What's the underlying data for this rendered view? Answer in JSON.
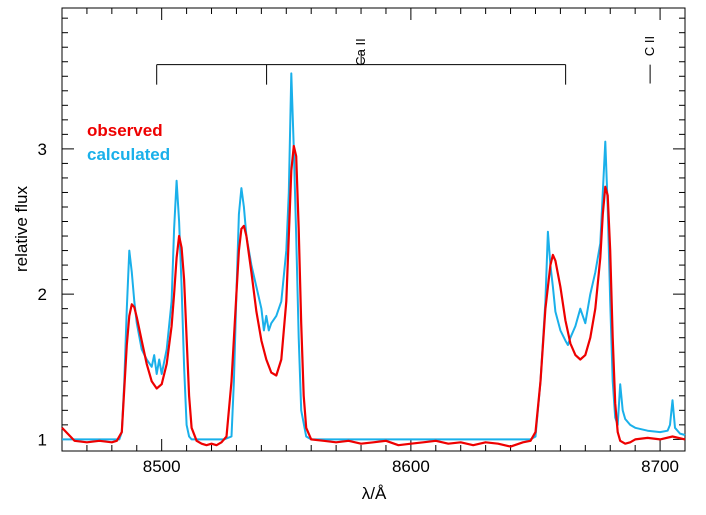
{
  "chart_data": {
    "type": "line",
    "title": "",
    "xlabel": "λ/Å",
    "ylabel": "relative flux",
    "xlim": [
      8460,
      8710
    ],
    "ylim": [
      0.92,
      3.97
    ],
    "x_ticks": [
      8500,
      8600,
      8700
    ],
    "x_tick_labels": [
      "8500",
      "8600",
      "8700"
    ],
    "y_ticks": [
      1,
      2,
      3
    ],
    "y_tick_labels": [
      "1",
      "2",
      "3"
    ],
    "legend": {
      "placement": "top-left",
      "entries": [
        {
          "label": "observed",
          "color": "#ee0000"
        },
        {
          "label": "calculated",
          "color": "#1ab0ea"
        }
      ]
    },
    "annotations": {
      "ca_label": "Ca II",
      "ca_lines": [
        8498.0,
        8542.1,
        8662.1
      ],
      "ca_bar_flux": 3.58,
      "ca_tick_top_flux": 3.68,
      "c_label": "C II",
      "c_line": 8696.0,
      "c_tick_range": [
        3.45,
        3.58
      ]
    },
    "series": [
      {
        "name": "observed",
        "color": "#ee0000",
        "x": [
          8460,
          8465,
          8470,
          8475,
          8480,
          8482,
          8484,
          8485,
          8486,
          8487,
          8488,
          8489,
          8490,
          8492,
          8494,
          8496,
          8498,
          8500,
          8502,
          8504,
          8505,
          8506,
          8507,
          8508,
          8509,
          8510,
          8511,
          8512,
          8514,
          8516,
          8518,
          8520,
          8522,
          8524,
          8526,
          8528,
          8530,
          8531,
          8532,
          8533,
          8534,
          8536,
          8538,
          8540,
          8542,
          8544,
          8546,
          8548,
          8550,
          8551,
          8552,
          8553,
          8554,
          8555,
          8556,
          8557,
          8558,
          8560,
          8565,
          8570,
          8575,
          8580,
          8585,
          8590,
          8595,
          8600,
          8605,
          8610,
          8615,
          8620,
          8625,
          8630,
          8635,
          8640,
          8645,
          8648,
          8650,
          8652,
          8654,
          8656,
          8657,
          8658,
          8660,
          8662,
          8664,
          8666,
          8668,
          8670,
          8672,
          8674,
          8676,
          8677,
          8678,
          8679,
          8680,
          8681,
          8682,
          8683,
          8684,
          8686,
          8688,
          8690,
          8695,
          8700,
          8705,
          8710
        ],
        "y": [
          1.08,
          0.99,
          0.98,
          0.99,
          0.98,
          0.99,
          1.05,
          1.35,
          1.65,
          1.85,
          1.93,
          1.91,
          1.84,
          1.68,
          1.52,
          1.4,
          1.35,
          1.38,
          1.52,
          1.78,
          2.0,
          2.25,
          2.4,
          2.32,
          2.1,
          1.7,
          1.3,
          1.08,
          0.99,
          0.97,
          0.96,
          0.97,
          0.96,
          0.98,
          1.02,
          1.4,
          2.0,
          2.3,
          2.45,
          2.47,
          2.4,
          2.15,
          1.88,
          1.68,
          1.55,
          1.46,
          1.44,
          1.55,
          1.95,
          2.4,
          2.85,
          3.02,
          2.95,
          2.45,
          1.8,
          1.3,
          1.08,
          1.0,
          0.99,
          0.98,
          0.99,
          0.97,
          0.98,
          0.99,
          0.96,
          0.97,
          0.98,
          0.99,
          0.97,
          0.98,
          0.96,
          0.98,
          0.97,
          0.95,
          0.98,
          0.99,
          1.05,
          1.4,
          1.9,
          2.2,
          2.27,
          2.23,
          2.05,
          1.82,
          1.66,
          1.58,
          1.55,
          1.58,
          1.7,
          1.9,
          2.25,
          2.55,
          2.74,
          2.68,
          2.3,
          1.7,
          1.25,
          1.05,
          0.99,
          0.97,
          0.98,
          1.0,
          1.01,
          1.0,
          1.02,
          1.0
        ]
      },
      {
        "name": "calculated",
        "color": "#1ab0ea",
        "x": [
          8460,
          8470,
          8480,
          8483,
          8484,
          8485,
          8486,
          8487,
          8488,
          8489,
          8490,
          8492,
          8494,
          8496,
          8497,
          8498,
          8499,
          8500,
          8502,
          8504,
          8505,
          8506,
          8507,
          8508,
          8509,
          8510,
          8511,
          8512,
          8514,
          8520,
          8525,
          8528,
          8529,
          8530,
          8531,
          8532,
          8533,
          8534,
          8536,
          8538,
          8540,
          8541,
          8542,
          8543,
          8544,
          8546,
          8548,
          8550,
          8551,
          8552,
          8553,
          8554,
          8555,
          8556,
          8558,
          8560,
          8570,
          8600,
          8620,
          8640,
          8648,
          8650,
          8652,
          8654,
          8655,
          8656,
          8657,
          8658,
          8660,
          8662,
          8663,
          8664,
          8666,
          8668,
          8670,
          8672,
          8674,
          8676,
          8677,
          8678,
          8679,
          8680,
          8681,
          8682,
          8683,
          8684,
          8685,
          8686,
          8688,
          8690,
          8695,
          8700,
          8703,
          8704,
          8705,
          8706,
          8708,
          8710
        ],
        "y": [
          1.0,
          1.0,
          1.0,
          1.0,
          1.05,
          1.4,
          1.9,
          2.3,
          2.15,
          1.95,
          1.8,
          1.62,
          1.55,
          1.5,
          1.58,
          1.45,
          1.55,
          1.45,
          1.62,
          1.95,
          2.45,
          2.78,
          2.5,
          2.05,
          1.5,
          1.1,
          1.02,
          1.0,
          1.0,
          1.0,
          1.0,
          1.02,
          1.4,
          2.0,
          2.55,
          2.73,
          2.6,
          2.4,
          2.2,
          2.05,
          1.9,
          1.75,
          1.85,
          1.75,
          1.8,
          1.85,
          1.95,
          2.3,
          2.7,
          3.52,
          3.0,
          2.4,
          1.7,
          1.2,
          1.02,
          1.0,
          1.0,
          1.0,
          1.0,
          1.0,
          1.0,
          1.02,
          1.4,
          1.95,
          2.43,
          2.2,
          2.05,
          1.88,
          1.75,
          1.68,
          1.65,
          1.7,
          1.78,
          1.9,
          1.8,
          2.0,
          2.15,
          2.35,
          2.7,
          3.05,
          2.6,
          1.95,
          1.4,
          1.15,
          1.1,
          1.38,
          1.2,
          1.14,
          1.1,
          1.08,
          1.06,
          1.05,
          1.06,
          1.1,
          1.27,
          1.08,
          1.04,
          1.03
        ]
      }
    ]
  }
}
